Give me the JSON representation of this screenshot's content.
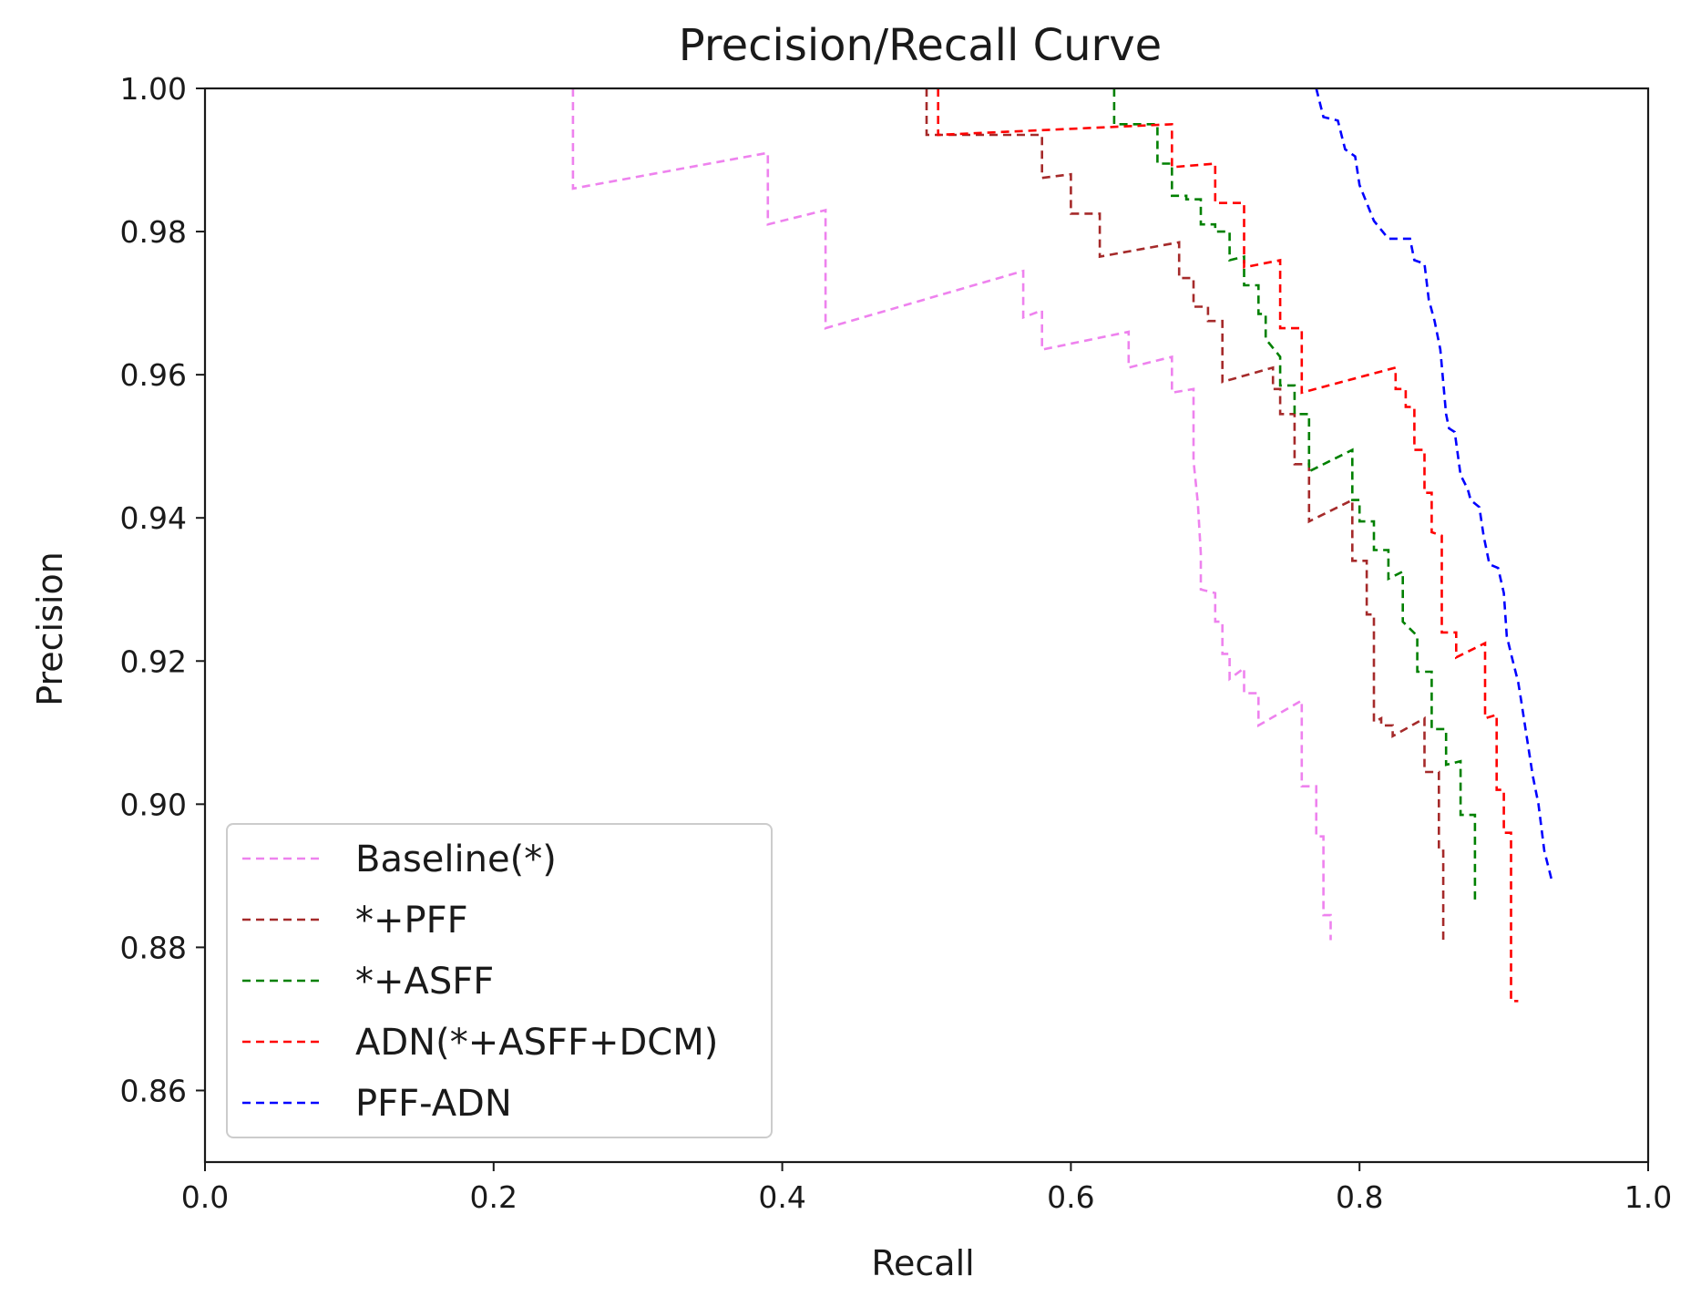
{
  "chart_data": {
    "type": "line",
    "title": "Precision/Recall Curve",
    "xlabel": "Recall",
    "ylabel": "Precision",
    "xlim": [
      0.0,
      1.0
    ],
    "ylim": [
      0.85,
      1.0
    ],
    "xticks": [
      "0.0",
      "0.2",
      "0.4",
      "0.6",
      "0.8",
      "1.0"
    ],
    "yticks": [
      "0.86",
      "0.88",
      "0.90",
      "0.92",
      "0.94",
      "0.96",
      "0.98",
      "1.00"
    ],
    "grid": false,
    "legend_position": "lower-left",
    "line_style": "dashed",
    "series": [
      {
        "name": "Baseline(*)",
        "color": "#ee82ee",
        "points": [
          [
            0.255,
            1.0
          ],
          [
            0.255,
            0.986
          ],
          [
            0.39,
            0.991
          ],
          [
            0.39,
            0.981
          ],
          [
            0.43,
            0.983
          ],
          [
            0.43,
            0.9665
          ],
          [
            0.567,
            0.9745
          ],
          [
            0.567,
            0.968
          ],
          [
            0.58,
            0.969
          ],
          [
            0.58,
            0.9635
          ],
          [
            0.64,
            0.966
          ],
          [
            0.64,
            0.961
          ],
          [
            0.67,
            0.9625
          ],
          [
            0.67,
            0.9575
          ],
          [
            0.685,
            0.958
          ],
          [
            0.685,
            0.948
          ],
          [
            0.688,
            0.942
          ],
          [
            0.69,
            0.935
          ],
          [
            0.69,
            0.93
          ],
          [
            0.7,
            0.9295
          ],
          [
            0.7,
            0.9255
          ],
          [
            0.705,
            0.9255
          ],
          [
            0.705,
            0.921
          ],
          [
            0.71,
            0.921
          ],
          [
            0.71,
            0.9175
          ],
          [
            0.72,
            0.919
          ],
          [
            0.72,
            0.9155
          ],
          [
            0.73,
            0.9155
          ],
          [
            0.73,
            0.911
          ],
          [
            0.76,
            0.9145
          ],
          [
            0.76,
            0.9025
          ],
          [
            0.77,
            0.9025
          ],
          [
            0.77,
            0.8955
          ],
          [
            0.775,
            0.8955
          ],
          [
            0.775,
            0.8845
          ],
          [
            0.78,
            0.8845
          ],
          [
            0.78,
            0.881
          ]
        ]
      },
      {
        "name": "*+PFF",
        "color": "#a52a2a",
        "points": [
          [
            0.5,
            1.0
          ],
          [
            0.5,
            0.9935
          ],
          [
            0.58,
            0.9935
          ],
          [
            0.58,
            0.9875
          ],
          [
            0.6,
            0.988
          ],
          [
            0.6,
            0.9825
          ],
          [
            0.62,
            0.9825
          ],
          [
            0.62,
            0.9765
          ],
          [
            0.675,
            0.9785
          ],
          [
            0.675,
            0.9735
          ],
          [
            0.685,
            0.9735
          ],
          [
            0.685,
            0.9695
          ],
          [
            0.695,
            0.9695
          ],
          [
            0.695,
            0.9675
          ],
          [
            0.705,
            0.9675
          ],
          [
            0.705,
            0.959
          ],
          [
            0.74,
            0.961
          ],
          [
            0.74,
            0.958
          ],
          [
            0.745,
            0.958
          ],
          [
            0.745,
            0.9545
          ],
          [
            0.755,
            0.9545
          ],
          [
            0.755,
            0.9475
          ],
          [
            0.765,
            0.9475
          ],
          [
            0.765,
            0.9395
          ],
          [
            0.795,
            0.9425
          ],
          [
            0.795,
            0.934
          ],
          [
            0.805,
            0.934
          ],
          [
            0.805,
            0.9265
          ],
          [
            0.81,
            0.9265
          ],
          [
            0.81,
            0.9115
          ],
          [
            0.815,
            0.912
          ],
          [
            0.815,
            0.911
          ],
          [
            0.823,
            0.911
          ],
          [
            0.823,
            0.9095
          ],
          [
            0.845,
            0.912
          ],
          [
            0.845,
            0.9045
          ],
          [
            0.855,
            0.9045
          ],
          [
            0.855,
            0.8935
          ],
          [
            0.858,
            0.8935
          ],
          [
            0.858,
            0.881
          ]
        ]
      },
      {
        "name": "*+ASFF",
        "color": "#008000",
        "points": [
          [
            0.63,
            1.0
          ],
          [
            0.63,
            0.995
          ],
          [
            0.66,
            0.995
          ],
          [
            0.66,
            0.9895
          ],
          [
            0.67,
            0.9895
          ],
          [
            0.67,
            0.985
          ],
          [
            0.68,
            0.985
          ],
          [
            0.68,
            0.9845
          ],
          [
            0.69,
            0.9845
          ],
          [
            0.69,
            0.981
          ],
          [
            0.7,
            0.981
          ],
          [
            0.7,
            0.98
          ],
          [
            0.71,
            0.98
          ],
          [
            0.71,
            0.976
          ],
          [
            0.72,
            0.9765
          ],
          [
            0.72,
            0.9725
          ],
          [
            0.73,
            0.9725
          ],
          [
            0.73,
            0.9685
          ],
          [
            0.735,
            0.9685
          ],
          [
            0.735,
            0.965
          ],
          [
            0.745,
            0.9625
          ],
          [
            0.745,
            0.9585
          ],
          [
            0.755,
            0.9585
          ],
          [
            0.755,
            0.9545
          ],
          [
            0.765,
            0.9545
          ],
          [
            0.765,
            0.9465
          ],
          [
            0.795,
            0.9495
          ],
          [
            0.795,
            0.9425
          ],
          [
            0.8,
            0.9425
          ],
          [
            0.8,
            0.9395
          ],
          [
            0.81,
            0.9395
          ],
          [
            0.81,
            0.9355
          ],
          [
            0.82,
            0.9355
          ],
          [
            0.82,
            0.9315
          ],
          [
            0.83,
            0.9325
          ],
          [
            0.83,
            0.9255
          ],
          [
            0.84,
            0.9235
          ],
          [
            0.84,
            0.9185
          ],
          [
            0.85,
            0.9185
          ],
          [
            0.85,
            0.9105
          ],
          [
            0.86,
            0.9105
          ],
          [
            0.86,
            0.9055
          ],
          [
            0.87,
            0.906
          ],
          [
            0.87,
            0.8985
          ],
          [
            0.88,
            0.8985
          ],
          [
            0.88,
            0.8865
          ]
        ]
      },
      {
        "name": "ADN(*+ASFF+DCM)",
        "color": "#ff0000",
        "points": [
          [
            0.508,
            1.0
          ],
          [
            0.508,
            0.9935
          ],
          [
            0.67,
            0.995
          ],
          [
            0.67,
            0.989
          ],
          [
            0.7,
            0.9895
          ],
          [
            0.7,
            0.984
          ],
          [
            0.72,
            0.984
          ],
          [
            0.72,
            0.975
          ],
          [
            0.745,
            0.976
          ],
          [
            0.745,
            0.9665
          ],
          [
            0.76,
            0.9665
          ],
          [
            0.76,
            0.9575
          ],
          [
            0.825,
            0.961
          ],
          [
            0.825,
            0.958
          ],
          [
            0.832,
            0.958
          ],
          [
            0.832,
            0.9555
          ],
          [
            0.838,
            0.9555
          ],
          [
            0.838,
            0.9495
          ],
          [
            0.845,
            0.9495
          ],
          [
            0.845,
            0.9435
          ],
          [
            0.85,
            0.9435
          ],
          [
            0.85,
            0.938
          ],
          [
            0.857,
            0.9375
          ],
          [
            0.857,
            0.924
          ],
          [
            0.867,
            0.924
          ],
          [
            0.867,
            0.9205
          ],
          [
            0.887,
            0.9225
          ],
          [
            0.887,
            0.912
          ],
          [
            0.895,
            0.9125
          ],
          [
            0.895,
            0.902
          ],
          [
            0.9,
            0.902
          ],
          [
            0.9,
            0.896
          ],
          [
            0.905,
            0.896
          ],
          [
            0.905,
            0.8725
          ],
          [
            0.91,
            0.8725
          ]
        ]
      },
      {
        "name": "PFF-ADN",
        "color": "#0000ff",
        "points": [
          [
            0.77,
            1.0
          ],
          [
            0.775,
            0.996
          ],
          [
            0.785,
            0.9955
          ],
          [
            0.79,
            0.9915
          ],
          [
            0.797,
            0.9905
          ],
          [
            0.8,
            0.9865
          ],
          [
            0.81,
            0.9815
          ],
          [
            0.82,
            0.979
          ],
          [
            0.82,
            0.979
          ],
          [
            0.835,
            0.979
          ],
          [
            0.838,
            0.976
          ],
          [
            0.845,
            0.9755
          ],
          [
            0.848,
            0.9705
          ],
          [
            0.852,
            0.9675
          ],
          [
            0.856,
            0.9635
          ],
          [
            0.86,
            0.9545
          ],
          [
            0.862,
            0.9525
          ],
          [
            0.866,
            0.952
          ],
          [
            0.87,
            0.946
          ],
          [
            0.875,
            0.944
          ],
          [
            0.877,
            0.9425
          ],
          [
            0.883,
            0.9415
          ],
          [
            0.886,
            0.9375
          ],
          [
            0.89,
            0.9335
          ],
          [
            0.896,
            0.933
          ],
          [
            0.9,
            0.9295
          ],
          [
            0.902,
            0.9235
          ],
          [
            0.905,
            0.921
          ],
          [
            0.91,
            0.917
          ],
          [
            0.912,
            0.9145
          ],
          [
            0.915,
            0.9105
          ],
          [
            0.92,
            0.904
          ],
          [
            0.924,
            0.9
          ],
          [
            0.928,
            0.8935
          ],
          [
            0.933,
            0.8895
          ]
        ]
      }
    ]
  }
}
